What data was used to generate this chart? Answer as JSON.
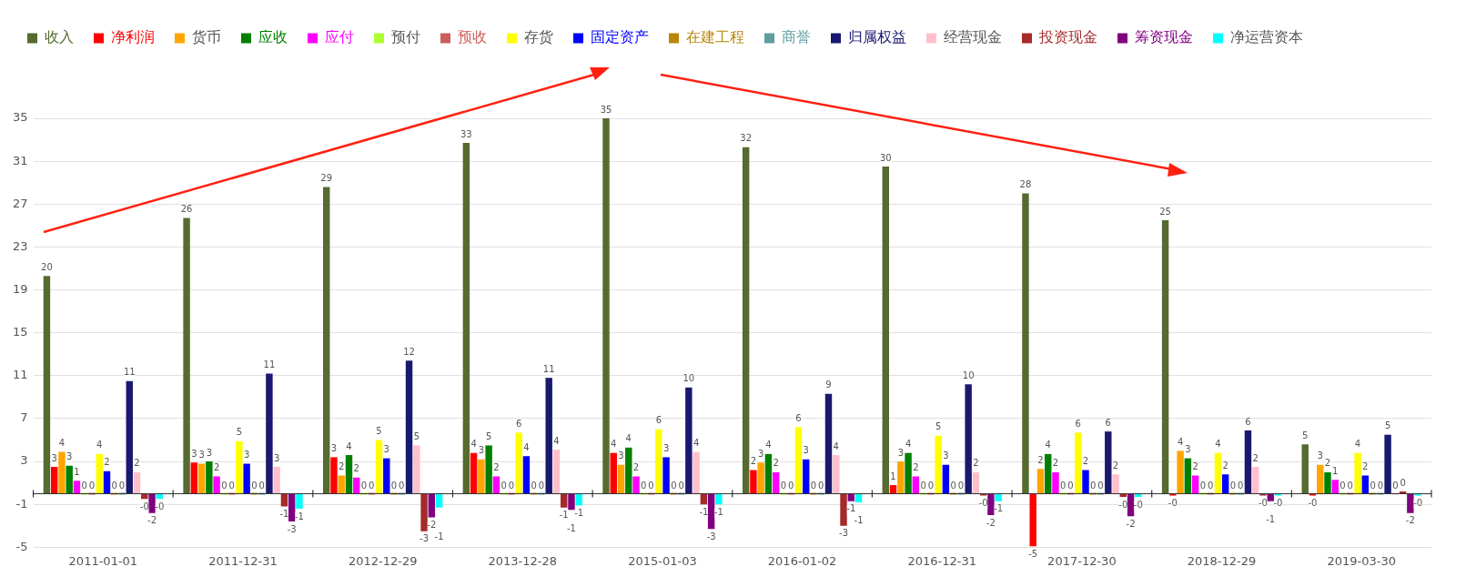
{
  "chart_data": {
    "type": "bar",
    "categories": [
      "2011-01-01",
      "2011-12-31",
      "2012-12-29",
      "2013-12-28",
      "2015-01-03",
      "2016-01-02",
      "2016-12-31",
      "2017-12-30",
      "2018-12-29",
      "2019-03-30"
    ],
    "series": [
      {
        "name": "收入",
        "color": "#556b2f",
        "values": [
          20.3,
          25.7,
          28.6,
          32.7,
          35,
          32.3,
          30.5,
          28,
          25.5,
          4.6
        ],
        "value_labels": [
          "20",
          "26",
          "29",
          "33",
          "35",
          "32",
          "30",
          "28",
          "25",
          "5"
        ]
      },
      {
        "name": "净利润",
        "color": "#ff0000",
        "values": [
          2.5,
          2.9,
          3.4,
          3.8,
          3.8,
          2.2,
          0.8,
          -4.9,
          -0.1,
          -0.1
        ],
        "value_labels": [
          "3",
          "3",
          "3",
          "4",
          "4",
          "2",
          "1",
          "-5",
          "-0",
          "-0"
        ]
      },
      {
        "name": "货币",
        "color": "#ffa500",
        "values": [
          3.9,
          2.8,
          1.7,
          3.2,
          2.7,
          2.9,
          3,
          2.3,
          4,
          2.7
        ],
        "value_labels": [
          "4",
          "3",
          "2",
          "3",
          "3",
          "3",
          "3",
          "2",
          "4",
          "3"
        ]
      },
      {
        "name": "应收",
        "color": "#008000",
        "values": [
          2.6,
          3,
          3.6,
          4.5,
          4.3,
          3.7,
          3.8,
          3.7,
          3.3,
          2
        ],
        "value_labels": [
          "3",
          "3",
          "4",
          "5",
          "4",
          "4",
          "4",
          "4",
          "3",
          "2"
        ]
      },
      {
        "name": "应付",
        "color": "#ff00ff",
        "values": [
          1.2,
          1.6,
          1.5,
          1.6,
          1.6,
          2,
          1.6,
          2,
          1.7,
          1.3
        ],
        "value_labels": [
          "1",
          "2",
          "2",
          "2",
          "2",
          "2",
          "2",
          "2",
          "2",
          "1"
        ]
      },
      {
        "name": "预付",
        "color": "#adff2f",
        "values": [
          0,
          0,
          0,
          0,
          0,
          0,
          0,
          0,
          0,
          0
        ],
        "value_labels": [
          "0",
          "0",
          "0",
          "0",
          "0",
          "0",
          "0",
          "0",
          "0",
          "0"
        ]
      },
      {
        "name": "预收",
        "color": "#cd5c5c",
        "values": [
          0,
          0,
          0,
          0,
          0,
          0,
          0,
          0,
          0,
          0
        ],
        "value_labels": [
          "0",
          "0",
          "0",
          "0",
          "0",
          "0",
          "0",
          "0",
          "0",
          "0"
        ]
      },
      {
        "name": "存货",
        "color": "#ffff00",
        "values": [
          3.7,
          4.9,
          5,
          5.7,
          6,
          6.2,
          5.4,
          5.7,
          3.8,
          3.8
        ],
        "value_labels": [
          "4",
          "5",
          "5",
          "6",
          "6",
          "6",
          "5",
          "6",
          "4",
          "4"
        ]
      },
      {
        "name": "固定资产",
        "color": "#0000ff",
        "values": [
          2.1,
          2.8,
          3.3,
          3.5,
          3.4,
          3.2,
          2.7,
          2.2,
          1.8,
          1.7
        ],
        "value_labels": [
          "2",
          "3",
          "3",
          "4",
          "3",
          "3",
          "3",
          "2",
          "2",
          "2"
        ]
      },
      {
        "name": "在建工程",
        "color": "#b8860b",
        "values": [
          0,
          0,
          0,
          0,
          0,
          0,
          0,
          0,
          0,
          0
        ],
        "value_labels": [
          "0",
          "0",
          "0",
          "0",
          "0",
          "0",
          "0",
          "0",
          "0",
          "0"
        ]
      },
      {
        "name": "商誉",
        "color": "#5f9ea0",
        "values": [
          0,
          0,
          0,
          0,
          0,
          0,
          0,
          0,
          0,
          0
        ],
        "value_labels": [
          "0",
          "0",
          "0",
          "0",
          "0",
          "0",
          "0",
          "0",
          "0",
          "0"
        ]
      },
      {
        "name": "归属权益",
        "color": "#191970",
        "values": [
          10.5,
          11.2,
          12.4,
          10.8,
          9.9,
          9.3,
          10.2,
          5.8,
          5.9,
          5.5
        ],
        "value_labels": [
          "11",
          "11",
          "12",
          "11",
          "10",
          "9",
          "10",
          "6",
          "6",
          "5"
        ]
      },
      {
        "name": "经营现金",
        "color": "#ffc0cb",
        "values": [
          2,
          2.5,
          4.5,
          4.1,
          3.9,
          3.6,
          2,
          1.8,
          2.5,
          0
        ],
        "value_labels": [
          "2",
          "3",
          "5",
          "4",
          "4",
          "4",
          "2",
          "2",
          "2",
          "0"
        ]
      },
      {
        "name": "投资现金",
        "color": "#a52a2a",
        "values": [
          -0.5,
          -1.2,
          -3.5,
          -1.3,
          -1,
          -3,
          -0.1,
          -0.3,
          -0.1,
          0.2
        ],
        "value_labels": [
          "-0",
          "-1",
          "-3",
          "-1",
          "-1",
          "-3",
          "-0",
          "-0",
          "-0",
          "0"
        ]
      },
      {
        "name": "筹资现金",
        "color": "#800080",
        "values": [
          -1.8,
          -2.6,
          -2.2,
          -1.5,
          -3.3,
          -0.7,
          -2,
          -2.1,
          -0.7,
          -1.8
        ],
        "value_labels": [
          "-2",
          "-3",
          "-2",
          "-1",
          "-3",
          "-1",
          "-2",
          "-2",
          "-1",
          "-2"
        ]
      },
      {
        "name": "净运营资本",
        "color": "#00ffff",
        "values": [
          -0.5,
          -1.4,
          -1.3,
          -1.1,
          -1,
          -0.8,
          -0.7,
          -0.3,
          -0.1,
          -0.1
        ],
        "value_labels": [
          "-0",
          "-1",
          "-1",
          "-1",
          "-1",
          "-1",
          "-1",
          "-0",
          "-0",
          "-0"
        ]
      }
    ],
    "ylim": [
      -5,
      35
    ],
    "yticks": [
      -5,
      -1,
      3,
      7,
      11,
      15,
      19,
      23,
      27,
      31,
      35
    ],
    "grid": "y",
    "legend": "top"
  }
}
